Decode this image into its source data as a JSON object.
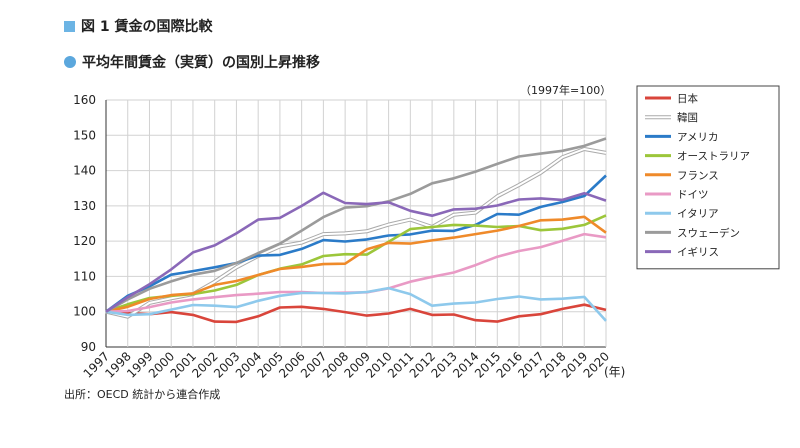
{
  "figure": {
    "title": "図 1 賃金の国際比較",
    "subtitle": "平均年間賃金（実質）の国別上昇推移",
    "unit_note": "（1997年=100）",
    "source": "出所：OECD 統計から連合作成",
    "xunit": "(年)"
  },
  "chart_data": {
    "type": "line",
    "title": "平均年間賃金（実質）の国別上昇推移",
    "xlabel": "(年)",
    "ylabel": "",
    "ylim": [
      90,
      160
    ],
    "yticks": [
      90,
      100,
      110,
      120,
      130,
      140,
      150,
      160
    ],
    "grid": true,
    "legend_position": "right",
    "x": [
      "1997",
      "1998",
      "1999",
      "2000",
      "2001",
      "2002",
      "2003",
      "2004",
      "2005",
      "2006",
      "2007",
      "2008",
      "2009",
      "2010",
      "2011",
      "2012",
      "2013",
      "2014",
      "2015",
      "2016",
      "2017",
      "2018",
      "2019",
      "2020"
    ],
    "series": [
      {
        "name": "日本",
        "color": "#d9453b",
        "style": "solid",
        "values": [
          100,
          99.6,
          99.3,
          99.9,
          99.1,
          97.2,
          97.1,
          98.7,
          101.2,
          101.4,
          100.8,
          99.9,
          98.9,
          99.5,
          100.8,
          99.1,
          99.2,
          97.6,
          97.2,
          98.7,
          99.3,
          100.8,
          102.0,
          100.5
        ]
      },
      {
        "name": "韓国",
        "color": "#aaaaaa",
        "style": "double",
        "values": [
          100,
          98.6,
          102.5,
          103.8,
          105.0,
          108.5,
          112.6,
          115.8,
          118.5,
          119.6,
          122.0,
          122.2,
          122.8,
          124.7,
          126.1,
          124.0,
          127.5,
          128.1,
          132.7,
          135.9,
          139.4,
          143.8,
          146.1,
          145.0
        ]
      },
      {
        "name": "アメリカ",
        "color": "#2b7bc8",
        "style": "solid",
        "values": [
          100,
          104.5,
          107.2,
          110.5,
          111.5,
          112.6,
          113.8,
          115.9,
          116.1,
          117.8,
          120.3,
          119.9,
          120.5,
          121.6,
          121.9,
          123.0,
          122.9,
          124.6,
          127.7,
          127.5,
          129.7,
          131.1,
          132.8,
          138.6
        ]
      },
      {
        "name": "オーストラリア",
        "color": "#9cc63a",
        "style": "solid",
        "values": [
          100,
          102.1,
          103.9,
          104.5,
          105.0,
          106.0,
          107.6,
          110.4,
          112.2,
          113.4,
          115.8,
          116.3,
          116.2,
          119.8,
          123.4,
          124.0,
          124.6,
          124.4,
          124.0,
          124.3,
          123.1,
          123.5,
          124.6,
          127.3
        ]
      },
      {
        "name": "フランス",
        "color": "#ef8a2a",
        "style": "solid",
        "values": [
          100,
          101.4,
          103.6,
          104.7,
          105.2,
          107.6,
          108.7,
          110.4,
          112.1,
          112.7,
          113.5,
          113.6,
          117.7,
          119.5,
          119.3,
          120.2,
          121.0,
          122.0,
          123.0,
          124.3,
          125.9,
          126.1,
          126.9,
          122.4
        ]
      },
      {
        "name": "ドイツ",
        "color": "#e99ac5",
        "style": "solid",
        "values": [
          100,
          100.2,
          101.3,
          102.6,
          103.5,
          104.1,
          104.7,
          105.1,
          105.6,
          105.6,
          105.3,
          105.4,
          105.5,
          106.6,
          108.5,
          109.9,
          111.1,
          113.2,
          115.6,
          117.2,
          118.3,
          120.1,
          122.0,
          121.1
        ]
      },
      {
        "name": "イタリア",
        "color": "#8ec9ec",
        "style": "solid",
        "values": [
          100,
          99.1,
          99.3,
          100.6,
          101.9,
          101.7,
          101.3,
          103.1,
          104.5,
          105.3,
          105.3,
          105.2,
          105.6,
          106.7,
          105.0,
          101.7,
          102.3,
          102.6,
          103.6,
          104.3,
          103.5,
          103.7,
          104.2,
          97.4
        ]
      },
      {
        "name": "スウェーデン",
        "color": "#9b9b9b",
        "style": "solid",
        "values": [
          100,
          103.5,
          106.5,
          108.6,
          110.5,
          111.6,
          113.8,
          116.6,
          119.3,
          123.0,
          126.8,
          129.5,
          129.9,
          131.3,
          133.4,
          136.4,
          137.8,
          139.7,
          141.9,
          144.0,
          144.8,
          145.6,
          147.0,
          149.1
        ]
      },
      {
        "name": "イギリス",
        "color": "#8a68b8",
        "style": "solid",
        "values": [
          100,
          104.1,
          107.8,
          112.0,
          116.8,
          118.8,
          122.2,
          126.1,
          126.6,
          130.0,
          133.7,
          130.8,
          130.5,
          131.0,
          128.6,
          127.2,
          129.0,
          129.2,
          130.1,
          131.8,
          132.1,
          131.7,
          133.6,
          131.5
        ]
      }
    ]
  }
}
